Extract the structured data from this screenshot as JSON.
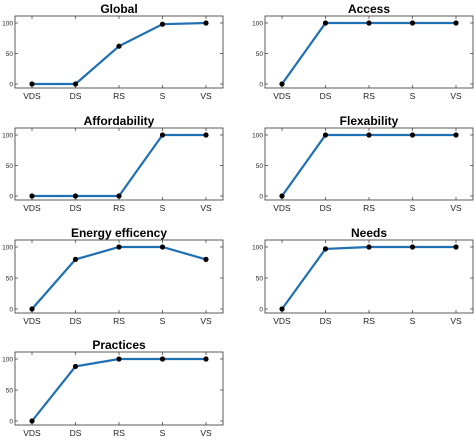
{
  "chart_data": [
    {
      "type": "line",
      "title": "Global",
      "categories": [
        "VDS",
        "DS",
        "RS",
        "S",
        "VS"
      ],
      "values": [
        0,
        0,
        62,
        98,
        100
      ],
      "yticks": [
        "0",
        "50",
        "100"
      ],
      "ylim": [
        0,
        100
      ],
      "grid": false
    },
    {
      "type": "line",
      "title": "Access",
      "categories": [
        "VDS",
        "DS",
        "RS",
        "S",
        "VS"
      ],
      "values": [
        0,
        100,
        100,
        100,
        100
      ],
      "yticks": [
        "0",
        "50",
        "100"
      ],
      "ylim": [
        0,
        100
      ],
      "grid": false
    },
    {
      "type": "line",
      "title": "Affordability",
      "categories": [
        "VDS",
        "DS",
        "RS",
        "S",
        "VS"
      ],
      "values": [
        0,
        0,
        0,
        100,
        100
      ],
      "yticks": [
        "0",
        "50",
        "100"
      ],
      "ylim": [
        0,
        100
      ],
      "grid": false
    },
    {
      "type": "line",
      "title": "Flexability",
      "categories": [
        "VDS",
        "DS",
        "RS",
        "S",
        "VS"
      ],
      "values": [
        0,
        100,
        100,
        100,
        100
      ],
      "yticks": [
        "0",
        "50",
        "100"
      ],
      "ylim": [
        0,
        100
      ],
      "grid": false
    },
    {
      "type": "line",
      "title": "Energy efficency",
      "categories": [
        "VDS",
        "DS",
        "RS",
        "S",
        "VS"
      ],
      "values": [
        0,
        80,
        100,
        100,
        80
      ],
      "yticks": [
        "0",
        "50",
        "100"
      ],
      "ylim": [
        0,
        100
      ],
      "grid": false
    },
    {
      "type": "line",
      "title": "Needs",
      "categories": [
        "VDS",
        "DS",
        "RS",
        "S",
        "VS"
      ],
      "values": [
        0,
        97,
        100,
        100,
        100
      ],
      "yticks": [
        "0",
        "50",
        "100"
      ],
      "ylim": [
        0,
        100
      ],
      "grid": false
    },
    {
      "type": "line",
      "title": "Practices",
      "categories": [
        "VDS",
        "DS",
        "RS",
        "S",
        "VS"
      ],
      "values": [
        0,
        88,
        100,
        100,
        100
      ],
      "yticks": [
        "0",
        "50",
        "100"
      ],
      "ylim": [
        0,
        100
      ],
      "grid": false
    }
  ],
  "colors": {
    "line": "#1f6fb3",
    "marker": "#000000"
  }
}
